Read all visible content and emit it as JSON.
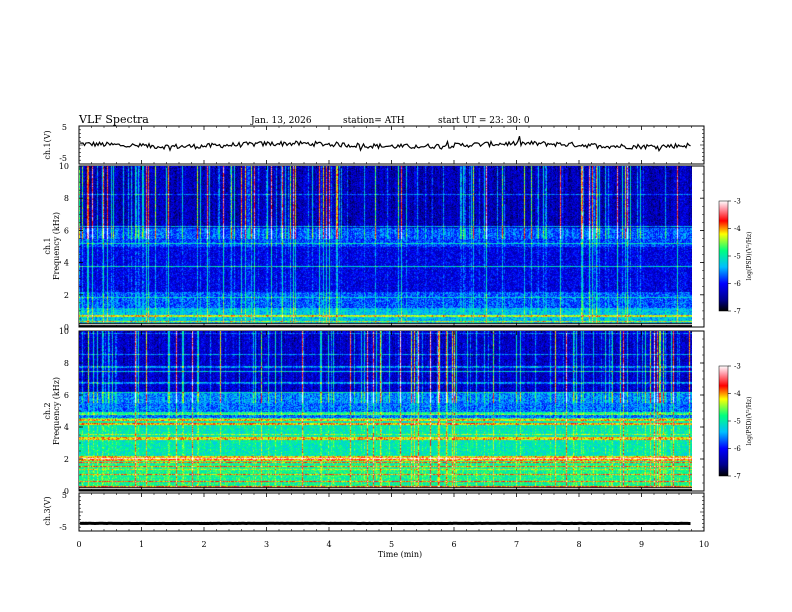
{
  "header": {
    "title": "VLF  Spectra",
    "date": "Jan. 13, 2026",
    "station": "station= ATH",
    "start": "start  UT  =    23: 30: 0"
  },
  "chart_data": [
    {
      "type": "line",
      "name": "ch1-voltage",
      "ylabel": "ch.1(V)",
      "ylim": [
        -5,
        5
      ],
      "yticks": [
        "5",
        "-5"
      ],
      "baseline": 0,
      "xlim": [
        0,
        9.8
      ]
    },
    {
      "type": "heatmap",
      "name": "ch1-spectrogram",
      "ylabel": "ch.1\nFrequency (kHz)",
      "ylim": [
        0,
        10
      ],
      "yticks": [
        "0",
        "2",
        "4",
        "6",
        "8",
        "10"
      ],
      "xlim": [
        0,
        9.8
      ],
      "colorbar": {
        "label": "log(PSD)(V²/Hz)",
        "range": [
          -7,
          -3
        ],
        "ticks": [
          "-3",
          "-4",
          "-5",
          "-6",
          "-7"
        ]
      }
    },
    {
      "type": "heatmap",
      "name": "ch2-spectrogram",
      "ylabel": "ch.2\nFrequency (kHz)",
      "ylim": [
        0,
        10
      ],
      "yticks": [
        "0",
        "2",
        "4",
        "6",
        "8",
        "10"
      ],
      "xlim": [
        0,
        9.8
      ],
      "colorbar": {
        "label": "log(PSD)(V²/Hz)",
        "range": [
          -7,
          -3
        ],
        "ticks": [
          "-3",
          "-4",
          "-5",
          "-6",
          "-7"
        ]
      }
    },
    {
      "type": "line",
      "name": "ch3-voltage",
      "ylabel": "ch.3(V)",
      "ylim": [
        -5,
        5
      ],
      "yticks": [
        "5",
        "-5"
      ],
      "baseline": -3,
      "xlim": [
        0,
        9.8
      ]
    }
  ],
  "x_axis": {
    "label": "Time  (min)",
    "range": [
      0,
      10
    ],
    "ticks": [
      "0",
      "1",
      "2",
      "3",
      "4",
      "5",
      "6",
      "7",
      "8",
      "9",
      "10"
    ]
  },
  "colors": {
    "cmap": [
      "#000000",
      "#00008b",
      "#0000ff",
      "#00bfff",
      "#00ff7f",
      "#ffff00",
      "#ff0000",
      "#ff9aa8",
      "#ffffff"
    ]
  }
}
